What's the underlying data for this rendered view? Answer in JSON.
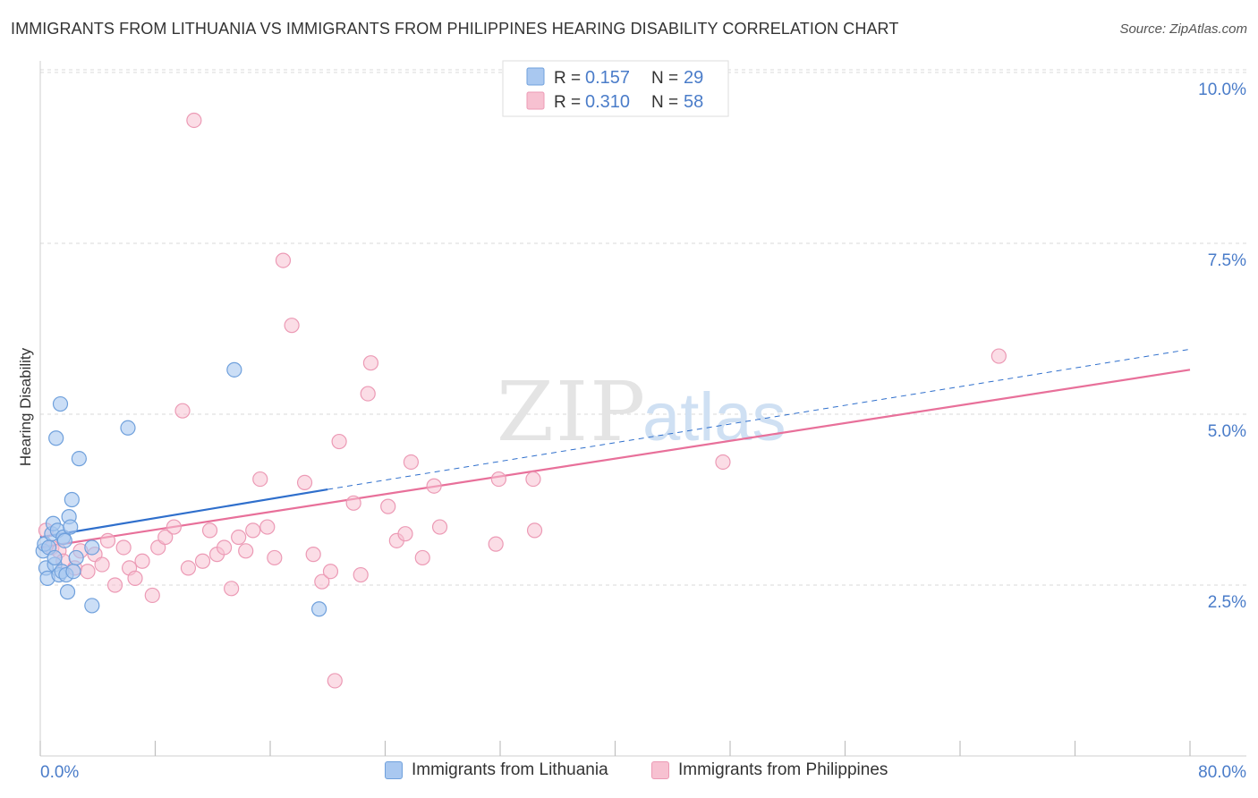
{
  "title": "IMMIGRANTS FROM LITHUANIA VS IMMIGRANTS FROM PHILIPPINES HEARING DISABILITY CORRELATION CHART",
  "source": "Source: ZipAtlas.com",
  "watermark": {
    "zip": "ZIP",
    "atlas": "atlas"
  },
  "legend_top": [
    {
      "r_label": "R =",
      "r_value": "0.157",
      "n_label": "N =",
      "n_value": "29"
    },
    {
      "r_label": "R =",
      "r_value": "0.310",
      "n_label": "N =",
      "n_value": "58"
    }
  ],
  "legend_bottom": [
    {
      "label": "Immigrants from Lithuania"
    },
    {
      "label": "Immigrants from Philippines"
    }
  ],
  "colors": {
    "lithuania_fill": "#a9c8f0",
    "lithuania_stroke": "#6fa0dc",
    "lithuania_line": "#2f6fcc",
    "philippines_fill": "#f7c1d1",
    "philippines_stroke": "#ec9ab5",
    "philippines_line": "#e8709a",
    "tick_label": "#4a7cc9",
    "grid": "#d8d8d8"
  },
  "chart_data": {
    "type": "scatter",
    "xlabel": "",
    "ylabel": "Hearing Disability",
    "xlim": [
      0,
      80
    ],
    "ylim": [
      0,
      10.5
    ],
    "x_tick_labels": [
      {
        "value": 0,
        "label": "0.0%"
      },
      {
        "value": 80,
        "label": "80.0%"
      }
    ],
    "y_tick_labels": [
      {
        "value": 2.5,
        "label": "2.5%"
      },
      {
        "value": 5.0,
        "label": "5.0%"
      },
      {
        "value": 7.5,
        "label": "7.5%"
      },
      {
        "value": 10.0,
        "label": "10.0%"
      }
    ],
    "grid": true,
    "series": [
      {
        "name": "Immigrants from Lithuania",
        "points": [
          [
            0.2,
            3.0
          ],
          [
            0.3,
            3.1
          ],
          [
            0.4,
            2.75
          ],
          [
            0.5,
            2.6
          ],
          [
            0.8,
            3.25
          ],
          [
            0.9,
            3.4
          ],
          [
            1.0,
            2.8
          ],
          [
            1.1,
            4.65
          ],
          [
            1.2,
            3.3
          ],
          [
            1.3,
            2.65
          ],
          [
            1.4,
            5.15
          ],
          [
            1.5,
            2.7
          ],
          [
            1.6,
            3.2
          ],
          [
            1.7,
            3.15
          ],
          [
            1.8,
            2.65
          ],
          [
            1.9,
            2.4
          ],
          [
            2.0,
            3.5
          ],
          [
            2.1,
            3.35
          ],
          [
            2.2,
            3.75
          ],
          [
            2.3,
            2.7
          ],
          [
            2.5,
            2.9
          ],
          [
            2.7,
            4.35
          ],
          [
            3.6,
            2.2
          ],
          [
            3.6,
            3.05
          ],
          [
            6.1,
            4.8
          ],
          [
            13.5,
            5.65
          ],
          [
            19.4,
            2.15
          ],
          [
            0.6,
            3.05
          ],
          [
            1.0,
            2.9
          ]
        ],
        "trend": {
          "x": [
            0,
            20
          ],
          "y": [
            3.2,
            3.9
          ],
          "dashed_to": [
            80,
            5.95
          ]
        }
      },
      {
        "name": "Immigrants from Philippines",
        "points": [
          [
            0.4,
            3.3
          ],
          [
            0.8,
            3.05
          ],
          [
            1.3,
            3.0
          ],
          [
            1.6,
            2.85
          ],
          [
            2.4,
            2.75
          ],
          [
            2.8,
            3.0
          ],
          [
            3.3,
            2.7
          ],
          [
            3.8,
            2.95
          ],
          [
            4.3,
            2.8
          ],
          [
            4.7,
            3.15
          ],
          [
            5.2,
            2.5
          ],
          [
            5.8,
            3.05
          ],
          [
            6.2,
            2.75
          ],
          [
            6.6,
            2.6
          ],
          [
            7.1,
            2.85
          ],
          [
            7.8,
            2.35
          ],
          [
            8.2,
            3.05
          ],
          [
            8.7,
            3.2
          ],
          [
            9.3,
            3.35
          ],
          [
            9.9,
            5.05
          ],
          [
            10.3,
            2.75
          ],
          [
            10.7,
            9.3
          ],
          [
            11.3,
            2.85
          ],
          [
            11.8,
            3.3
          ],
          [
            12.3,
            2.95
          ],
          [
            12.8,
            3.05
          ],
          [
            13.3,
            2.45
          ],
          [
            13.8,
            3.2
          ],
          [
            14.3,
            3.0
          ],
          [
            14.8,
            3.3
          ],
          [
            15.3,
            4.05
          ],
          [
            15.8,
            3.35
          ],
          [
            16.3,
            2.9
          ],
          [
            16.9,
            7.25
          ],
          [
            17.5,
            6.3
          ],
          [
            18.4,
            4.0
          ],
          [
            19.0,
            2.95
          ],
          [
            19.6,
            2.55
          ],
          [
            20.2,
            2.7
          ],
          [
            20.5,
            1.1
          ],
          [
            20.8,
            4.6
          ],
          [
            21.8,
            3.7
          ],
          [
            22.3,
            2.65
          ],
          [
            22.8,
            5.3
          ],
          [
            23.0,
            5.75
          ],
          [
            24.2,
            3.65
          ],
          [
            24.8,
            3.15
          ],
          [
            25.4,
            3.25
          ],
          [
            25.8,
            4.3
          ],
          [
            26.6,
            2.9
          ],
          [
            27.4,
            3.95
          ],
          [
            27.8,
            3.35
          ],
          [
            31.7,
            3.1
          ],
          [
            31.9,
            4.05
          ],
          [
            34.3,
            4.05
          ],
          [
            34.4,
            3.3
          ],
          [
            47.5,
            4.3
          ],
          [
            66.7,
            5.85
          ]
        ],
        "trend": {
          "x": [
            0,
            80
          ],
          "y": [
            3.05,
            5.65
          ]
        }
      }
    ]
  }
}
